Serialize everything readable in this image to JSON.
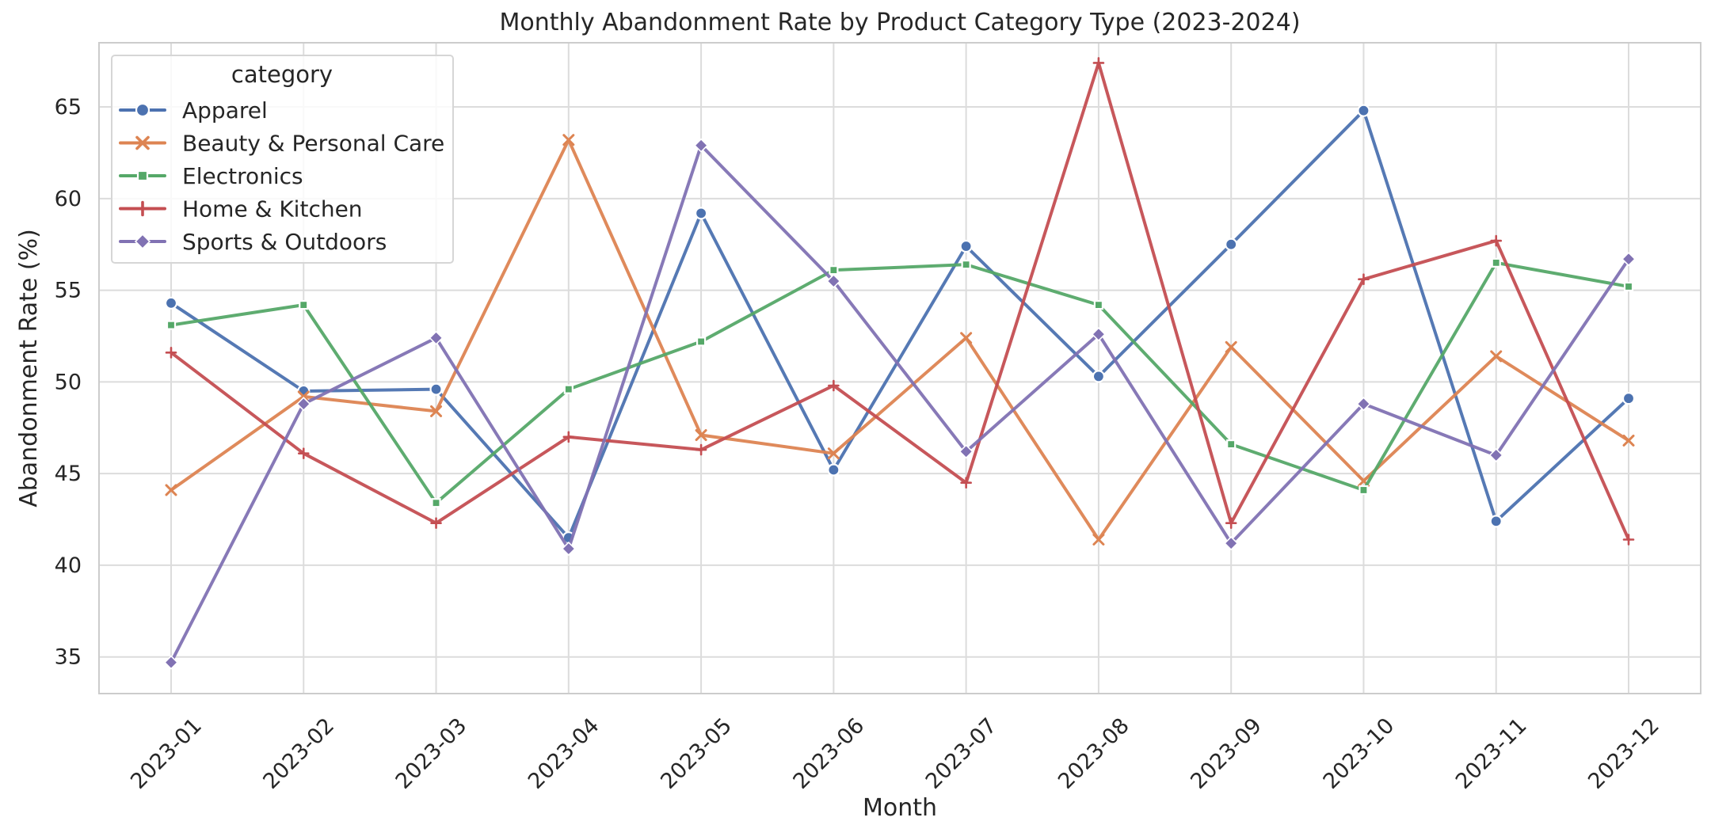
{
  "chart_data": {
    "type": "line",
    "title": "Monthly Abandonment Rate by Product Category Type (2023-2024)",
    "xlabel": "Month",
    "ylabel": "Abandonment Rate (%)",
    "categories": [
      "2023-01",
      "2023-02",
      "2023-03",
      "2023-04",
      "2023-05",
      "2023-06",
      "2023-07",
      "2023-08",
      "2023-09",
      "2023-10",
      "2023-11",
      "2023-12"
    ],
    "ylim": [
      33,
      68.5
    ],
    "yticks": [
      35,
      40,
      45,
      50,
      55,
      60,
      65
    ],
    "grid": true,
    "legend": {
      "title": "category",
      "position": "top-left"
    },
    "series": [
      {
        "name": "Apparel",
        "color": "#4C72B0",
        "marker": "circle",
        "values": [
          54.3,
          49.5,
          49.6,
          41.5,
          59.2,
          45.2,
          57.4,
          50.3,
          57.5,
          64.8,
          42.4,
          49.1
        ]
      },
      {
        "name": "Beauty & Personal Care",
        "color": "#DD8452",
        "marker": "x",
        "values": [
          44.1,
          49.2,
          48.4,
          63.2,
          47.1,
          46.1,
          52.4,
          41.4,
          51.9,
          44.6,
          51.4,
          46.8
        ]
      },
      {
        "name": "Electronics",
        "color": "#55A868",
        "marker": "square",
        "values": [
          53.1,
          54.2,
          43.4,
          49.6,
          52.2,
          56.1,
          56.4,
          54.2,
          46.6,
          44.1,
          56.5,
          55.2
        ]
      },
      {
        "name": "Home & Kitchen",
        "color": "#C44E52",
        "marker": "plus",
        "values": [
          51.6,
          46.1,
          42.3,
          47.0,
          46.3,
          49.8,
          44.5,
          67.4,
          42.3,
          55.6,
          57.7,
          41.4
        ]
      },
      {
        "name": "Sports & Outdoors",
        "color": "#8172B3",
        "marker": "diamond",
        "values": [
          34.7,
          48.8,
          52.4,
          40.9,
          62.9,
          55.5,
          46.2,
          52.6,
          41.2,
          48.8,
          46.0,
          56.7
        ]
      }
    ]
  }
}
